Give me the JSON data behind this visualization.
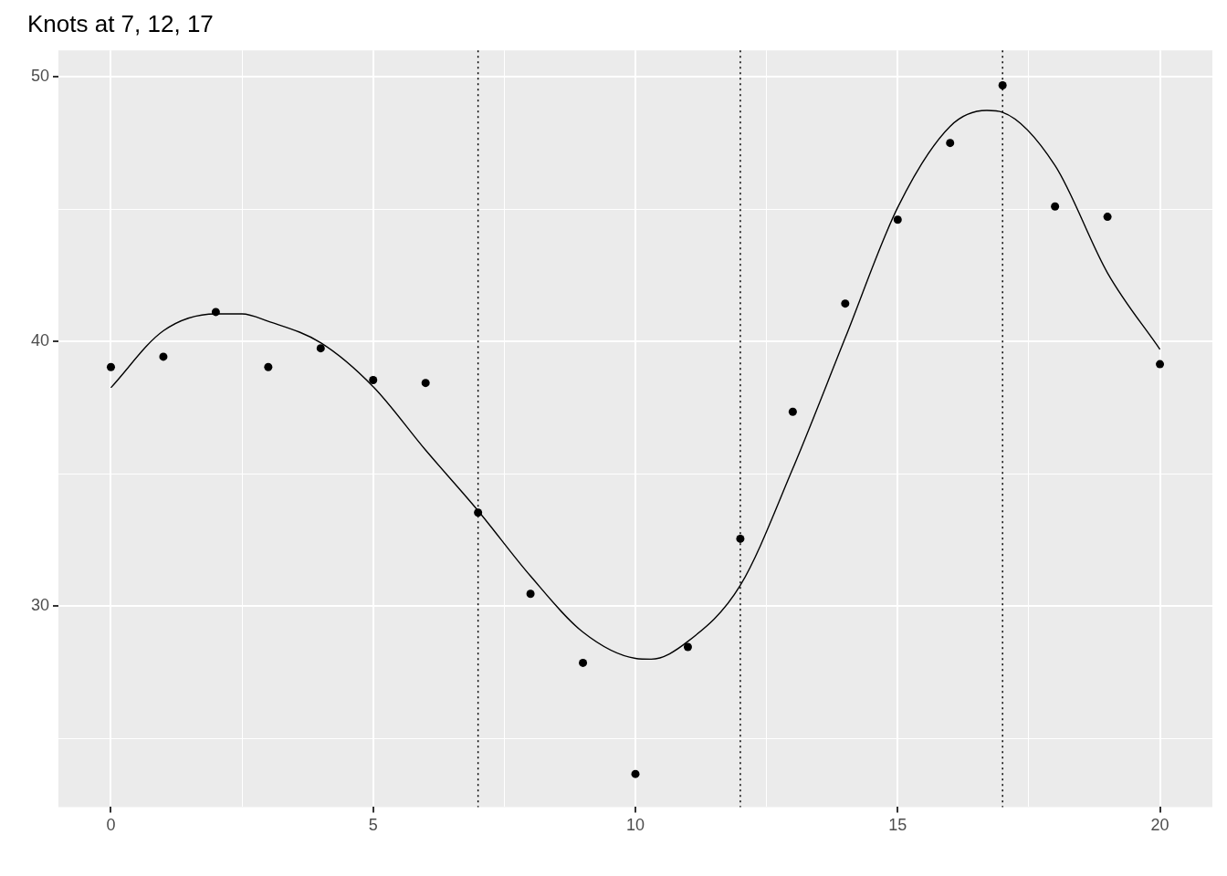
{
  "chart_data": {
    "type": "scatter",
    "title": "Knots at 7, 12, 17",
    "series": [
      {
        "color": "#000000",
        "marker": "circle",
        "x": [
          0,
          1,
          2,
          3,
          4,
          5,
          6,
          7,
          8,
          9,
          10,
          11,
          12,
          13,
          14,
          15,
          16,
          17,
          18,
          19,
          20
        ],
        "values": [
          39.03,
          39.42,
          41.11,
          39.03,
          39.74,
          38.54,
          38.43,
          33.53,
          30.46,
          27.85,
          23.65,
          28.45,
          32.54,
          37.34,
          41.43,
          44.6,
          47.5,
          49.68,
          45.1,
          44.71,
          39.14
        ]
      },
      {
        "type": "line",
        "color": "#000000",
        "marker": "none",
        "line_style": "solid",
        "x": [
          0,
          1,
          2,
          2.5,
          3,
          4,
          5,
          6,
          7,
          8,
          9,
          10,
          10.3,
          11,
          12,
          13,
          14,
          15,
          16,
          16.7,
          17,
          18,
          19,
          20
        ],
        "values": [
          38.25,
          40.4,
          41.04,
          41.04,
          40.76,
          39.95,
          38.29,
          35.89,
          33.6,
          31.13,
          29.01,
          28.02,
          27.99,
          28.66,
          30.78,
          35.19,
          40.13,
          45.06,
          48.13,
          48.73,
          48.66,
          46.65,
          42.59,
          39.7
        ]
      }
    ],
    "xlim": [
      -1,
      21
    ],
    "ylim": [
      22.4,
      51
    ],
    "xticks": [
      0,
      {
        "value": 2.5,
        "label": null
      },
      5,
      {
        "value": 7.5,
        "label": null
      },
      10,
      {
        "value": 12.5,
        "label": null
      },
      15,
      {
        "value": 17.5,
        "label": null
      },
      20
    ],
    "yticks": [
      {
        "value": 25,
        "label": null
      },
      30,
      {
        "value": 35,
        "label": null
      },
      40,
      {
        "value": 45,
        "label": null
      },
      50
    ],
    "grid": true,
    "legend": false,
    "ref_lines": [
      {
        "axis": "x",
        "value": 7,
        "line_style": "dotted",
        "color": "#000000"
      },
      {
        "axis": "x",
        "value": 12,
        "line_style": "dotted",
        "color": "#000000"
      },
      {
        "axis": "x",
        "value": 17,
        "line_style": "dotted",
        "color": "#000000"
      }
    ]
  }
}
